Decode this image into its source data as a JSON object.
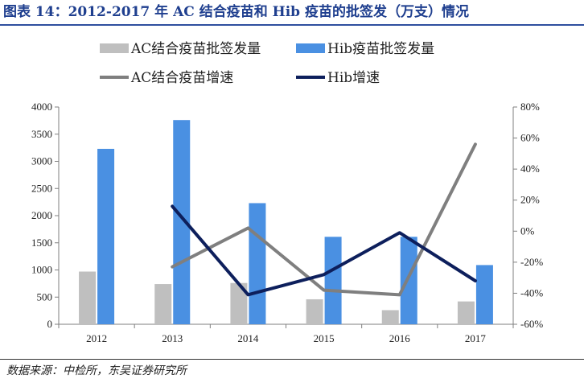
{
  "header": {
    "title": "图表 14：2012-2017 年 AC 结合疫苗和 Hib 疫苗的批签发（万支）情况"
  },
  "footer": {
    "source": "数据来源：中检所，东吴证券研究所"
  },
  "colors": {
    "ac_bar": "#bfbfbf",
    "hib_bar": "#4a90e2",
    "ac_line": "#7f7f7f",
    "hib_line": "#0d1f5c",
    "title": "#1f3f8f"
  },
  "chart_data": {
    "type": "bar",
    "categories": [
      "2012",
      "2013",
      "2014",
      "2015",
      "2016",
      "2017"
    ],
    "y_left": {
      "min": 0,
      "max": 4000,
      "step": 500,
      "ticks": [
        "0",
        "500",
        "1000",
        "1500",
        "2000",
        "2500",
        "3000",
        "3500",
        "4000"
      ]
    },
    "y_right": {
      "min": -60,
      "max": 80,
      "step": 20,
      "ticks": [
        "-60%",
        "-40%",
        "-20%",
        "0%",
        "20%",
        "40%",
        "60%",
        "80%"
      ]
    },
    "series": [
      {
        "name": "AC结合疫苗批签发量",
        "kind": "bar",
        "axis": "left",
        "values": [
          970,
          740,
          760,
          460,
          260,
          420
        ]
      },
      {
        "name": "Hib疫苗批签发量",
        "kind": "bar",
        "axis": "left",
        "values": [
          3230,
          3760,
          2230,
          1610,
          1610,
          1090
        ]
      },
      {
        "name": "AC结合疫苗增速",
        "kind": "line",
        "axis": "right",
        "values": [
          null,
          -23,
          2,
          -38,
          -41,
          56
        ]
      },
      {
        "name": "Hib增速",
        "kind": "line",
        "axis": "right",
        "values": [
          null,
          16,
          -41,
          -28,
          -1,
          -32
        ]
      }
    ],
    "legend_position": "top",
    "grid": false
  }
}
